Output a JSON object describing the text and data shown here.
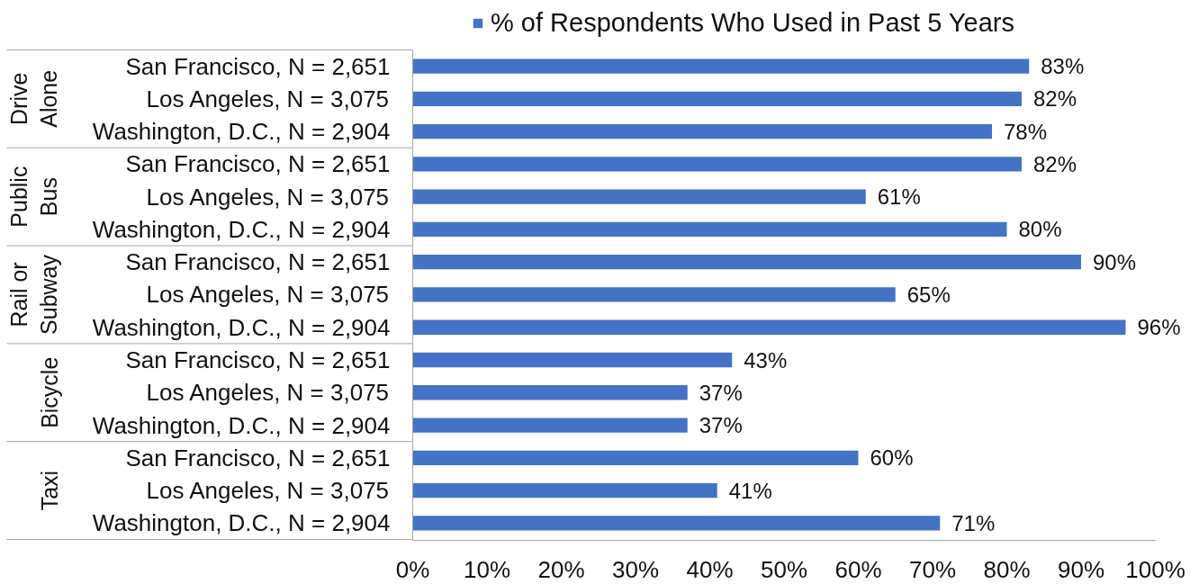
{
  "chart_data": {
    "type": "bar",
    "orientation": "horizontal",
    "legend": "top",
    "categories": [
      "San Francisco, N = 2,651",
      "Los Angeles, N = 3,075",
      "Washington, D.C., N = 2,904",
      "San Francisco, N = 2,651",
      "Los Angeles, N = 3,075",
      "Washington, D.C., N = 2,904",
      "San Francisco, N = 2,651",
      "Los Angeles, N = 3,075",
      "Washington, D.C., N = 2,904",
      "San Francisco, N = 2,651",
      "Los Angeles, N = 3,075",
      "Washington, D.C., N = 2,904",
      "San Francisco, N = 2,651",
      "Los Angeles, N = 3,075",
      "Washington, D.C., N = 2,904"
    ],
    "annotations": [
      "Drive Alone",
      "Public Bus",
      "Rail or Subway",
      "Bicycle",
      "Taxi"
    ],
    "series": [
      {
        "name": "% of Respondents Who Used in Past 5 Years",
        "color": "#4472c4",
        "values": [
          83,
          82,
          78,
          82,
          61,
          80,
          90,
          65,
          96,
          43,
          37,
          37,
          60,
          41,
          71
        ],
        "value_labels": [
          "83%",
          "82%",
          "78%",
          "82%",
          "61%",
          "80%",
          "90%",
          "65%",
          "96%",
          "43%",
          "37%",
          "37%",
          "60%",
          "41%",
          "71%"
        ]
      }
    ],
    "xlim": [
      0,
      100
    ],
    "xticks": [
      {
        "value": 0,
        "label": "0%"
      },
      {
        "value": 10,
        "label": "10%"
      },
      {
        "value": 20,
        "label": "20%"
      },
      {
        "value": 30,
        "label": "30%"
      },
      {
        "value": 40,
        "label": "40%"
      },
      {
        "value": 50,
        "label": "50%"
      },
      {
        "value": 60,
        "label": "60%"
      },
      {
        "value": 70,
        "label": "70%"
      },
      {
        "value": 80,
        "label": "80%"
      },
      {
        "value": 90,
        "label": "90%"
      },
      {
        "value": 100,
        "label": "100%"
      }
    ]
  }
}
